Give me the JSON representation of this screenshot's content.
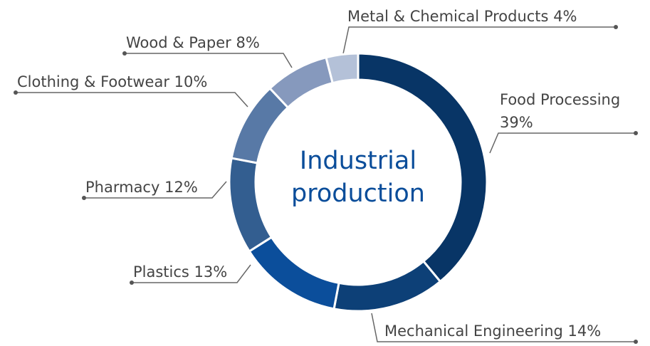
{
  "chart_data": {
    "type": "donut",
    "center_label": [
      "Industrial",
      "production"
    ],
    "categories": [
      "Food Processing",
      "Mechanical Engineering",
      "Plastics",
      "Pharmacy",
      "Clothing & Footwear",
      "Wood & Paper",
      "Metal & Chemical Products"
    ],
    "values": [
      39,
      14,
      13,
      12,
      10,
      8,
      4
    ],
    "value_labels": [
      "39%",
      "14%",
      "13%",
      "12%",
      "10%",
      "8%",
      "4%"
    ],
    "colors": [
      "#083566",
      "#0d4077",
      "#0b4e9b",
      "#335e90",
      "#5879a6",
      "#8699bd",
      "#b4c1d8"
    ]
  }
}
